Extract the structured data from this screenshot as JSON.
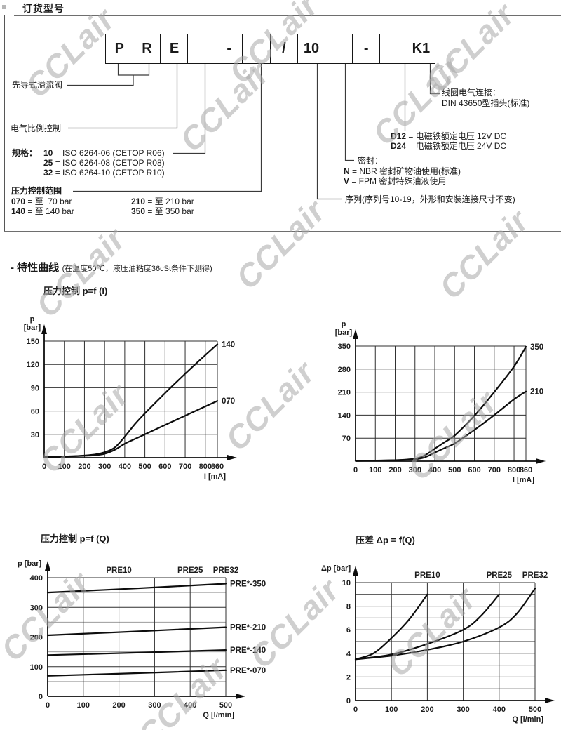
{
  "watermark": {
    "text": "CCLair"
  },
  "header": {
    "title": "订货型号"
  },
  "order_code": {
    "boxes": [
      "P",
      "R",
      "E",
      "",
      "-",
      "",
      "/",
      "10",
      "",
      "-",
      "",
      "K1"
    ],
    "pilot_label": "先导式溢流阀",
    "proportional_label": "电气比例控制",
    "size_label": "规格：",
    "size_options": [
      {
        "code": "10",
        "desc": "= ISO 6264-06 (CETOP R06)"
      },
      {
        "code": "25",
        "desc": "= ISO 6264-08 (CETOP R08)"
      },
      {
        "code": "32",
        "desc": "= ISO 6264-10 (CETOP R10)"
      }
    ],
    "pressure_label": "压力控制范围",
    "pressure_options": [
      {
        "code": "070",
        "desc": "= 至  70 bar"
      },
      {
        "code": "140",
        "desc": "= 至 140 bar"
      },
      {
        "code": "210",
        "desc": "= 至 210 bar"
      },
      {
        "code": "350",
        "desc": "= 至 350 bar"
      }
    ],
    "coil_lines": [
      "线圈电气连接：",
      "DIN 43650型插头(标准)"
    ],
    "voltage_options": [
      {
        "code": "D12",
        "desc": "= 电磁铁额定电压 12V DC"
      },
      {
        "code": "D24",
        "desc": "= 电磁铁额定电压 24V DC"
      }
    ],
    "seal_label": "密封：",
    "seal_options": [
      {
        "code": "N",
        "desc": "= NBR 密封矿物油使用(标准)"
      },
      {
        "code": "V",
        "desc": "= FPM 密封特殊油液使用"
      }
    ],
    "series_label": "序列(序列号10-19，外形和安装连接尺寸不变)"
  },
  "curves_section": {
    "title": "- 特性曲线",
    "note": "(在温度50℃，液压油粘度36cSt条件下测得)"
  },
  "chart_data": [
    {
      "id": "pressure_vs_current_low",
      "type": "line",
      "title": "压力控制 p=f (I)",
      "ylabel_lines": [
        "p",
        "[bar]"
      ],
      "xlabel": "I [mA]",
      "xlim": [
        0,
        860
      ],
      "ylim": [
        0,
        150
      ],
      "x_gridlines": [
        100,
        200,
        300,
        400,
        500,
        600,
        700,
        800,
        860
      ],
      "y_gridlines": [
        30,
        60,
        90,
        120,
        150
      ],
      "x_ticks": [
        0,
        100,
        200,
        300,
        400,
        500,
        600,
        700,
        800,
        860
      ],
      "y_ticks": [
        30,
        60,
        90,
        120,
        150
      ],
      "grid": true,
      "series": [
        {
          "name": "140",
          "label_end": true,
          "points": [
            [
              0,
              1
            ],
            [
              150,
              2
            ],
            [
              250,
              4
            ],
            [
              300,
              7
            ],
            [
              350,
              13
            ],
            [
              400,
              27
            ],
            [
              450,
              43
            ],
            [
              500,
              57
            ],
            [
              600,
              83
            ],
            [
              700,
              108
            ],
            [
              800,
              132
            ],
            [
              860,
              146
            ]
          ]
        },
        {
          "name": "070",
          "label_end": true,
          "points": [
            [
              0,
              1
            ],
            [
              150,
              2
            ],
            [
              250,
              3
            ],
            [
              300,
              5
            ],
            [
              350,
              10
            ],
            [
              400,
              18
            ],
            [
              450,
              24
            ],
            [
              500,
              30
            ],
            [
              600,
              42
            ],
            [
              700,
              54
            ],
            [
              800,
              66
            ],
            [
              860,
              73
            ]
          ]
        }
      ]
    },
    {
      "id": "pressure_vs_current_high",
      "type": "line",
      "ylabel_lines": [
        "p",
        "[bar]"
      ],
      "xlabel": "I [mA]",
      "xlim": [
        0,
        860
      ],
      "ylim": [
        0,
        350
      ],
      "x_gridlines": [
        100,
        200,
        300,
        400,
        500,
        600,
        700,
        800,
        860
      ],
      "y_gridlines": [
        70,
        140,
        210,
        280,
        350
      ],
      "x_ticks": [
        0,
        100,
        200,
        300,
        400,
        500,
        600,
        700,
        800,
        860
      ],
      "y_ticks": [
        70,
        140,
        210,
        280,
        350
      ],
      "grid": true,
      "series": [
        {
          "name": "350",
          "label_end": true,
          "points": [
            [
              0,
              1
            ],
            [
              200,
              3
            ],
            [
              300,
              8
            ],
            [
              350,
              18
            ],
            [
              400,
              38
            ],
            [
              450,
              58
            ],
            [
              500,
              78
            ],
            [
              600,
              138
            ],
            [
              700,
              210
            ],
            [
              800,
              288
            ],
            [
              860,
              348
            ]
          ]
        },
        {
          "name": "210",
          "label_end": true,
          "points": [
            [
              0,
              1
            ],
            [
              200,
              3
            ],
            [
              300,
              6
            ],
            [
              350,
              12
            ],
            [
              400,
              26
            ],
            [
              450,
              40
            ],
            [
              500,
              54
            ],
            [
              600,
              95
            ],
            [
              700,
              140
            ],
            [
              800,
              188
            ],
            [
              860,
              212
            ]
          ]
        }
      ]
    },
    {
      "id": "pressure_vs_flow",
      "type": "line",
      "title": "压力控制 p=f (Q)",
      "ylabel_lines": [
        "p [bar]"
      ],
      "xlabel": "Q [l/min]",
      "xlim": [
        0,
        500
      ],
      "ylim": [
        0,
        400
      ],
      "x_gridlines": [
        100,
        200,
        300,
        400,
        500
      ],
      "y_gridlines": [
        100,
        200,
        300,
        400
      ],
      "y_minor": [
        50,
        150,
        250,
        350
      ],
      "x_ticks": [
        0,
        100,
        200,
        300,
        400,
        500
      ],
      "y_ticks": [
        0,
        100,
        200,
        300,
        400
      ],
      "grid": true,
      "top_labels": [
        {
          "text": "PRE10",
          "x": 200
        },
        {
          "text": "PRE25",
          "x": 400
        },
        {
          "text": "PRE32",
          "x": 500
        }
      ],
      "series": [
        {
          "name": "PRE*-350",
          "label_end": true,
          "points": [
            [
              0,
              350
            ],
            [
              250,
              364
            ],
            [
              500,
              380
            ]
          ]
        },
        {
          "name": "PRE*-210",
          "label_end": true,
          "points": [
            [
              0,
              206
            ],
            [
              250,
              219
            ],
            [
              500,
              233
            ]
          ]
        },
        {
          "name": "PRE*-140",
          "label_end": true,
          "points": [
            [
              0,
              139
            ],
            [
              250,
              147
            ],
            [
              500,
              156
            ]
          ]
        },
        {
          "name": "PRE*-070",
          "label_end": true,
          "points": [
            [
              0,
              69
            ],
            [
              250,
              78
            ],
            [
              500,
              88
            ]
          ]
        }
      ]
    },
    {
      "id": "pressure_drop_vs_flow",
      "type": "line",
      "title": "压差 Δp = f(Q)",
      "ylabel_lines": [
        "Δp [bar]"
      ],
      "xlabel": "Q [l/min]",
      "xlim": [
        0,
        500
      ],
      "ylim": [
        0,
        10
      ],
      "x_gridlines": [
        100,
        200,
        300,
        400,
        500
      ],
      "y_gridlines": [
        1,
        2,
        3,
        4,
        5,
        6,
        7,
        8,
        9,
        10
      ],
      "x_ticks": [
        0,
        100,
        200,
        300,
        400,
        500
      ],
      "y_ticks": [
        0,
        2,
        4,
        6,
        8,
        10
      ],
      "grid": true,
      "top_labels": [
        {
          "text": "PRE10",
          "x": 200
        },
        {
          "text": "PRE25",
          "x": 400
        },
        {
          "text": "PRE32",
          "x": 500
        }
      ],
      "series": [
        {
          "name": "PRE10",
          "points": [
            [
              0,
              3.5
            ],
            [
              50,
              4.0
            ],
            [
              100,
              5.3
            ],
            [
              150,
              6.9
            ],
            [
              200,
              9.0
            ]
          ]
        },
        {
          "name": "PRE25",
          "points": [
            [
              0,
              3.5
            ],
            [
              100,
              3.9
            ],
            [
              200,
              4.8
            ],
            [
              300,
              6.0
            ],
            [
              350,
              7.2
            ],
            [
              400,
              9.0
            ]
          ]
        },
        {
          "name": "PRE32",
          "points": [
            [
              0,
              3.5
            ],
            [
              100,
              3.8
            ],
            [
              200,
              4.3
            ],
            [
              300,
              5.0
            ],
            [
              400,
              6.2
            ],
            [
              450,
              7.4
            ],
            [
              500,
              9.5
            ]
          ]
        }
      ]
    }
  ]
}
